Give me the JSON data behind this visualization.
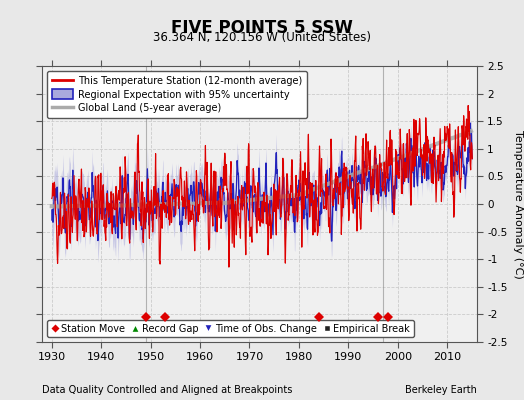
{
  "title": "FIVE POINTS 5 SSW",
  "subtitle": "36.364 N, 120.156 W (United States)",
  "ylabel": "Temperature Anomaly (°C)",
  "xlabel_bottom_left": "Data Quality Controlled and Aligned at Breakpoints",
  "xlabel_bottom_right": "Berkeley Earth",
  "ylim": [
    -2.5,
    2.5
  ],
  "xlim": [
    1928,
    2016
  ],
  "yticks": [
    -2.5,
    -2,
    -1.5,
    -1,
    -0.5,
    0,
    0.5,
    1,
    1.5,
    2,
    2.5
  ],
  "xticks": [
    1930,
    1940,
    1950,
    1960,
    1970,
    1980,
    1990,
    2000,
    2010
  ],
  "station_move_years": [
    1949,
    1953,
    1984,
    1996,
    1998
  ],
  "station_move_y": -2.05,
  "vertical_line_years": [
    1949,
    1997
  ],
  "bg_color": "#e8e8e8",
  "plot_bg_color": "#f0f0f0",
  "red_line_color": "#dd0000",
  "blue_line_color": "#2222bb",
  "blue_fill_color": "#aaaadd",
  "gray_line_color": "#aaaaaa",
  "legend_station": "This Temperature Station (12-month average)",
  "legend_regional": "Regional Expectation with 95% uncertainty",
  "legend_global": "Global Land (5-year average)",
  "legend_station_move": "Station Move",
  "legend_record_gap": "Record Gap",
  "legend_obs_change": "Time of Obs. Change",
  "legend_empirical": "Empirical Break",
  "seed": 42
}
